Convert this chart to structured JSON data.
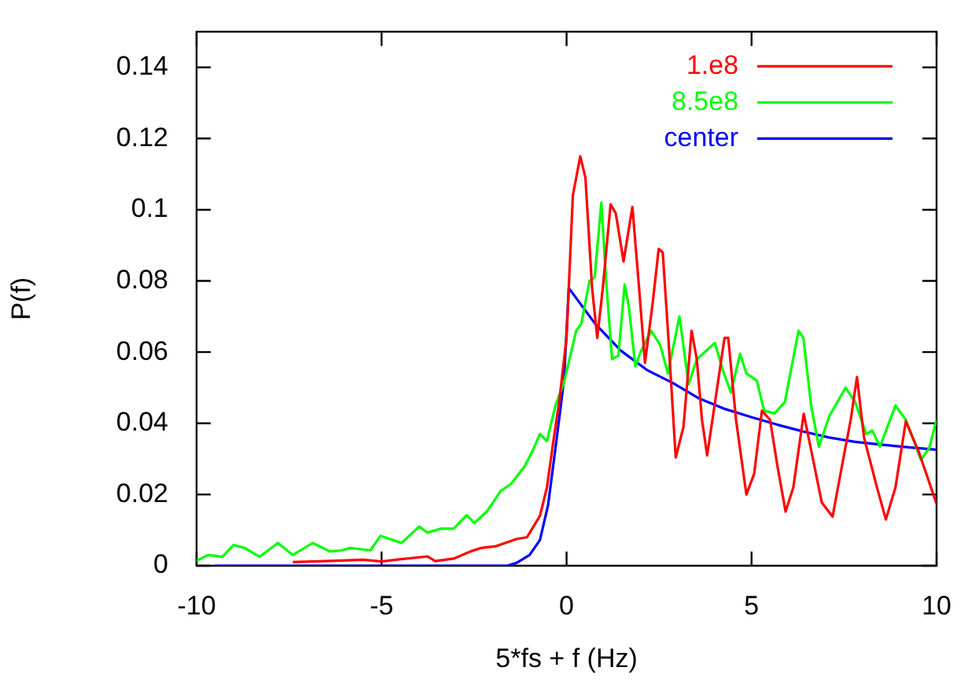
{
  "chart_data": {
    "type": "line",
    "xlabel": "5*fs + f (Hz)",
    "ylabel": "P(f)",
    "xlim": [
      -10,
      10
    ],
    "xticks": [
      -10,
      -5,
      0,
      5,
      10
    ],
    "ylim": [
      0,
      0.15
    ],
    "yticks": [
      0,
      0.02,
      0.04,
      0.06,
      0.08,
      {
        "value": 0.1,
        "label": "0.1"
      },
      0.12,
      0.14
    ],
    "grid": false,
    "legend": "top right",
    "marker": "none",
    "line_style": "solid",
    "series": [
      {
        "name": "1.e8",
        "color": "#ff0000",
        "x": [
          -7.4,
          -6.2,
          -5.5,
          -5,
          -4.6,
          -3.76,
          -3.55,
          -3.05,
          -2.6,
          -2.3,
          -1.9,
          -1.35,
          -1.07,
          -0.72,
          -0.53,
          -0.37,
          -0.2,
          0,
          0.17,
          0.37,
          0.51,
          0.69,
          0.83,
          0.98,
          1.19,
          1.33,
          1.54,
          1.78,
          1.96,
          2.12,
          2.33,
          2.49,
          2.6,
          2.74,
          2.95,
          3.16,
          3.38,
          3.52,
          3.66,
          3.8,
          4.27,
          4.37,
          4.58,
          4.86,
          5.07,
          5.28,
          5.5,
          5.7,
          5.92,
          6.13,
          6.41,
          6.62,
          6.9,
          7.19,
          7.47,
          7.68,
          7.85,
          8.04,
          8.39,
          8.63,
          8.89,
          9.17,
          9.52,
          10
        ],
        "values": [
          0.001,
          0.0014,
          0.0017,
          0.0012,
          0.0017,
          0.0026,
          0.0013,
          0.002,
          0.004,
          0.005,
          0.0055,
          0.0075,
          0.008,
          0.014,
          0.022,
          0.034,
          0.046,
          0.064,
          0.104,
          0.115,
          0.109,
          0.078,
          0.064,
          0.078,
          0.1015,
          0.099,
          0.0855,
          0.1008,
          0.078,
          0.057,
          0.074,
          0.089,
          0.088,
          0.066,
          0.0304,
          0.039,
          0.066,
          0.058,
          0.041,
          0.031,
          0.064,
          0.064,
          0.041,
          0.02,
          0.0258,
          0.0435,
          0.041,
          0.028,
          0.0152,
          0.022,
          0.0427,
          0.032,
          0.0177,
          0.0138,
          0.0295,
          0.041,
          0.053,
          0.036,
          0.022,
          0.013,
          0.022,
          0.0406,
          0.032,
          0.0174
        ]
      },
      {
        "name": "8.5e8",
        "color": "#00ff00",
        "x": [
          -10,
          -9.69,
          -9.3,
          -9,
          -8.7,
          -8.3,
          -7.8,
          -7.4,
          -6.86,
          -6.4,
          -6.07,
          -5.85,
          -5.3,
          -5.03,
          -4.46,
          -3.98,
          -3.76,
          -3.4,
          -3.05,
          -2.7,
          -2.49,
          -2.14,
          -1.78,
          -1.5,
          -1.14,
          -0.93,
          -0.72,
          -0.53,
          -0.3,
          -0.08,
          0.26,
          0.4,
          0.62,
          0.76,
          0.94,
          1.07,
          1.23,
          1.4,
          1.57,
          1.68,
          1.86,
          2,
          2.29,
          2.53,
          2.74,
          3.05,
          3.3,
          3.52,
          4.01,
          4.22,
          4.44,
          4.69,
          4.86,
          5.14,
          5.34,
          5.62,
          5.9,
          6.27,
          6.4,
          6.61,
          6.82,
          7.1,
          7.54,
          7.8,
          8.1,
          8.26,
          8.47,
          8.89,
          9.17,
          9.58,
          9.8,
          10
        ],
        "values": [
          0.0014,
          0.003,
          0.0025,
          0.0058,
          0.005,
          0.0025,
          0.0064,
          0.003,
          0.0064,
          0.004,
          0.0043,
          0.005,
          0.0043,
          0.0084,
          0.0064,
          0.011,
          0.0093,
          0.0104,
          0.0104,
          0.0142,
          0.012,
          0.0154,
          0.021,
          0.023,
          0.0278,
          0.032,
          0.037,
          0.035,
          0.045,
          0.051,
          0.066,
          0.068,
          0.08,
          0.081,
          0.102,
          0.08,
          0.058,
          0.059,
          0.079,
          0.073,
          0.056,
          0.06,
          0.066,
          0.062,
          0.054,
          0.07,
          0.051,
          0.058,
          0.0626,
          0.055,
          0.0487,
          0.0595,
          0.054,
          0.052,
          0.0435,
          0.0428,
          0.046,
          0.066,
          0.064,
          0.045,
          0.0334,
          0.042,
          0.05,
          0.046,
          0.037,
          0.038,
          0.0335,
          0.045,
          0.041,
          0.0297,
          0.033,
          0.041
        ]
      },
      {
        "name": "center",
        "color": "#0000ff",
        "x": [
          -9.5,
          -1.6,
          -1.35,
          -1,
          -0.72,
          -0.5,
          -0.3,
          -0.07,
          0.06,
          0.77,
          1.47,
          2.17,
          2.88,
          3.58,
          4.29,
          5,
          5.7,
          6.4,
          7.1,
          7.8,
          8.5,
          9.2,
          10
        ],
        "values": [
          0,
          0,
          0.0008,
          0.003,
          0.0072,
          0.017,
          0.033,
          0.052,
          0.078,
          0.068,
          0.0604,
          0.055,
          0.0513,
          0.047,
          0.044,
          0.0417,
          0.0396,
          0.0377,
          0.036,
          0.0348,
          0.034,
          0.0333,
          0.0326
        ]
      }
    ]
  }
}
